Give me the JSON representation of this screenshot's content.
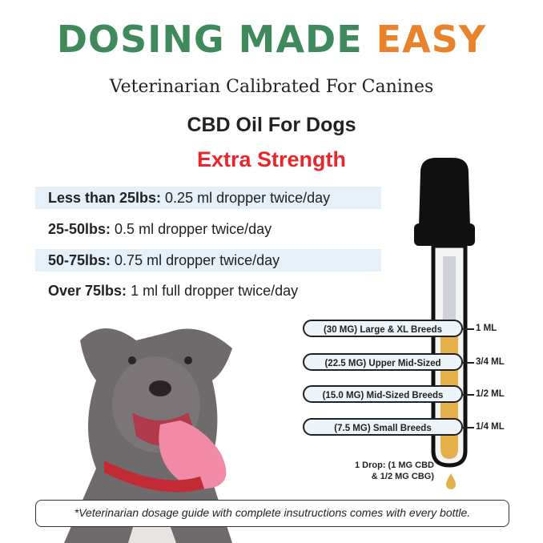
{
  "header": {
    "title_part1": "DOSING MADE ",
    "title_part2": "EASY",
    "subtitle": "Veterinarian Calibrated For Canines",
    "product": "CBD Oil For Dogs",
    "strength": "Extra Strength"
  },
  "colors": {
    "green": "#3e8a5c",
    "orange": "#e8832c",
    "red": "#e8262b",
    "oil": "#e4b04a",
    "highlight": "#e6f0f8"
  },
  "dosing": [
    {
      "weight": "Less than 25lbs:",
      "dose": " 0.25 ml dropper twice/day"
    },
    {
      "weight": "25-50lbs:",
      "dose": " 0.5 ml dropper twice/day"
    },
    {
      "weight": "50-75lbs:",
      "dose": " 0.75 ml dropper twice/day"
    },
    {
      "weight": "Over 75lbs:",
      "dose": " 1 ml full dropper twice/day"
    }
  ],
  "dropper": {
    "levels": [
      {
        "label": "(30 MG) Large & XL Breeds",
        "ml": "1 ML"
      },
      {
        "label": "(22.5 MG) Upper Mid-Sized",
        "ml": "3/4 ML"
      },
      {
        "label": "(15.0 MG) Mid-Sized Breeds",
        "ml": "1/2 ML"
      },
      {
        "label": "(7.5 MG) Small Breeds",
        "ml": "1/4 ML"
      }
    ],
    "drop_line1": "1 Drop: (1 MG CBD",
    "drop_line2": "& 1/2 MG CBG)"
  },
  "footer": "*Veterinarian dosage guide with complete insutructions comes with every bottle."
}
